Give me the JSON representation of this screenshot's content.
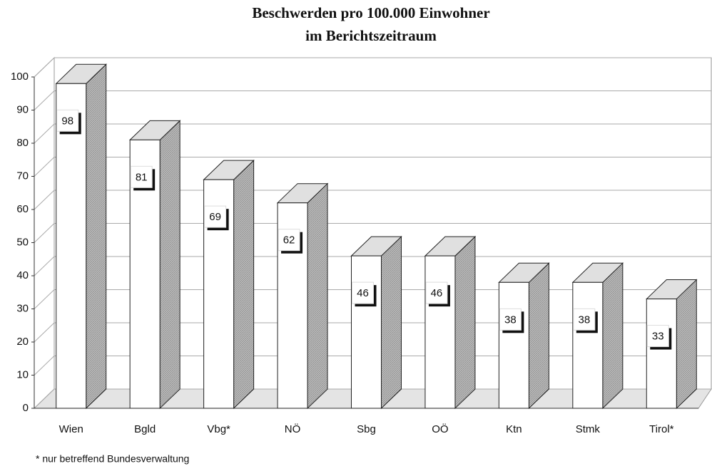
{
  "chart_data": {
    "type": "bar3d",
    "title": [
      "Beschwerden pro 100.000 Einwohner",
      "im Berichtszeitraum"
    ],
    "categories": [
      "Wien",
      "Bgld",
      "Vbg*",
      "NÖ",
      "Sbg",
      "OÖ",
      "Ktn",
      "Stmk",
      "Tirol*"
    ],
    "values": [
      98,
      81,
      69,
      62,
      46,
      46,
      38,
      38,
      33
    ],
    "color": "#ffffff",
    "ylim": [
      0,
      100
    ],
    "yticks": [
      0,
      10,
      20,
      30,
      40,
      50,
      60,
      70,
      80,
      90,
      100
    ],
    "grid": true,
    "footnote": "* nur betreffend Bundesverwaltung"
  }
}
